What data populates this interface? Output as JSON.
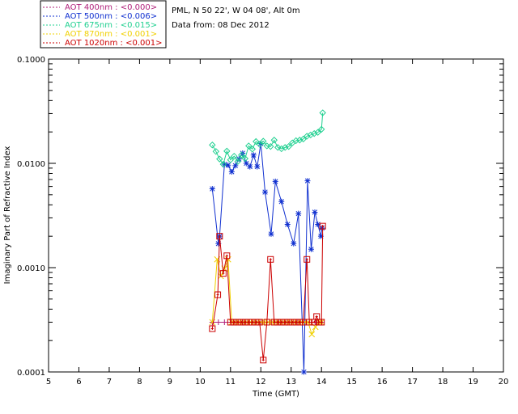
{
  "info": {
    "location": "PML, N 50 22', W 04 08', Alt 0m",
    "data_from": "Data from: 08 Dec 2012"
  },
  "legend": [
    {
      "label": "AOT  400nm : <0.000>",
      "color": "#b0207a"
    },
    {
      "label": "AOT  500nm : <0.006>",
      "color": "#1030d0"
    },
    {
      "label": "AOT  675nm : <0.015>",
      "color": "#20d090"
    },
    {
      "label": "AOT  870nm : <0.001>",
      "color": "#f0d000"
    },
    {
      "label": "AOT 1020nm : <0.001>",
      "color": "#cc0000"
    }
  ],
  "chart_data": {
    "type": "line",
    "title": "",
    "xlabel": "Time (GMT)",
    "ylabel": "Imaginary Part of Refractive Index",
    "xlim": [
      5,
      20
    ],
    "ylim": [
      0.0001,
      0.1
    ],
    "yscale": "log",
    "xticks": [
      "5",
      "6",
      "7",
      "8",
      "9",
      "10",
      "11",
      "12",
      "13",
      "14",
      "15",
      "16",
      "17",
      "18",
      "19",
      "20"
    ],
    "yticks": [
      {
        "value": 0.0001,
        "label": "0.0001"
      },
      {
        "value": 0.001,
        "label": "0.0010"
      },
      {
        "value": 0.01,
        "label": "0.0100"
      },
      {
        "value": 0.1,
        "label": "0.1000"
      }
    ],
    "series": [
      {
        "name": "AOT  400nm : <0.000>",
        "color": "#b0207a",
        "marker": "plus",
        "x": [
          10.4,
          10.6,
          10.8,
          11.0,
          11.2,
          11.4,
          11.6,
          11.8,
          12.0,
          12.2,
          12.4,
          12.6,
          12.8,
          13.0,
          13.2,
          13.4,
          13.6,
          13.8,
          14.0
        ],
        "y": [
          0.0003,
          0.0003,
          0.0003,
          0.0003,
          0.0003,
          0.0003,
          0.0003,
          0.0003,
          0.0003,
          0.0003,
          0.0003,
          0.0003,
          0.0003,
          0.0003,
          0.0003,
          0.0003,
          0.0003,
          0.0003,
          0.0003
        ]
      },
      {
        "name": "AOT  500nm : <0.006>",
        "color": "#1030d0",
        "marker": "star",
        "x": [
          10.4,
          10.6,
          10.64,
          10.8,
          10.92,
          11.04,
          11.16,
          11.28,
          11.4,
          11.52,
          11.64,
          11.76,
          11.88,
          12.0,
          12.14,
          12.34,
          12.48,
          12.68,
          12.88,
          13.08,
          13.24,
          13.42,
          13.54,
          13.66,
          13.78,
          13.88,
          13.98,
          14.02
        ],
        "y": [
          0.0057,
          0.0017,
          0.002,
          0.0098,
          0.0096,
          0.0083,
          0.0095,
          0.011,
          0.0125,
          0.01,
          0.0093,
          0.012,
          0.0093,
          0.0155,
          0.0053,
          0.0021,
          0.0067,
          0.0043,
          0.0026,
          0.0017,
          0.0033,
          0.0001,
          0.0068,
          0.0015,
          0.0034,
          0.0026,
          0.002,
          0.0024
        ]
      },
      {
        "name": "AOT  675nm : <0.015>",
        "color": "#20d090",
        "marker": "diamond",
        "x": [
          10.4,
          10.52,
          10.64,
          10.76,
          10.88,
          11.0,
          11.12,
          11.24,
          11.36,
          11.48,
          11.6,
          11.72,
          11.84,
          11.96,
          12.08,
          12.2,
          12.32,
          12.44,
          12.56,
          12.68,
          12.8,
          12.92,
          13.04,
          13.16,
          13.28,
          13.4,
          13.52,
          13.64,
          13.76,
          13.88,
          14.0,
          14.04
        ],
        "y": [
          0.015,
          0.013,
          0.011,
          0.0098,
          0.0131,
          0.0108,
          0.0117,
          0.0104,
          0.012,
          0.0111,
          0.0147,
          0.0137,
          0.0162,
          0.0152,
          0.0163,
          0.0147,
          0.0145,
          0.0167,
          0.0142,
          0.0138,
          0.0142,
          0.0145,
          0.0157,
          0.0165,
          0.0167,
          0.0171,
          0.0182,
          0.0187,
          0.0193,
          0.0198,
          0.0212,
          0.0305
        ]
      },
      {
        "name": "AOT  870nm : <0.001>",
        "color": "#f0d000",
        "marker": "x",
        "x": [
          10.4,
          10.56,
          10.68,
          10.8,
          10.92,
          11.04,
          11.16,
          11.28,
          11.4,
          11.52,
          11.64,
          11.76,
          11.88,
          12.0,
          12.12,
          12.24,
          12.36,
          12.48,
          12.6,
          12.72,
          12.84,
          12.96,
          13.08,
          13.2,
          13.32,
          13.44,
          13.56,
          13.68,
          13.8,
          13.92,
          14.0
        ],
        "y": [
          0.0003,
          0.0012,
          0.00083,
          0.00098,
          0.0012,
          0.0003,
          0.0003,
          0.0003,
          0.0003,
          0.0003,
          0.0003,
          0.0003,
          0.0003,
          0.0003,
          0.0003,
          0.0003,
          0.0003,
          0.0003,
          0.0003,
          0.0003,
          0.0003,
          0.0003,
          0.0003,
          0.0003,
          0.0003,
          0.0003,
          0.0003,
          0.00023,
          0.00027,
          0.0003,
          0.0003
        ]
      },
      {
        "name": "AOT 1020nm : <0.001>",
        "color": "#cc0000",
        "marker": "square",
        "x": [
          10.4,
          10.58,
          10.64,
          10.76,
          10.88,
          11.0,
          11.12,
          11.24,
          11.36,
          11.48,
          11.6,
          11.72,
          11.84,
          11.96,
          12.08,
          12.2,
          12.32,
          12.44,
          12.56,
          12.68,
          12.8,
          12.92,
          13.04,
          13.16,
          13.28,
          13.4,
          13.52,
          13.6,
          13.76,
          13.84,
          13.92,
          14.0,
          14.04
        ],
        "y": [
          0.00026,
          0.00055,
          0.002,
          0.00088,
          0.0013,
          0.0003,
          0.0003,
          0.0003,
          0.0003,
          0.0003,
          0.0003,
          0.0003,
          0.0003,
          0.0003,
          0.00013,
          0.0003,
          0.0012,
          0.0003,
          0.0003,
          0.0003,
          0.0003,
          0.0003,
          0.0003,
          0.0003,
          0.0003,
          0.0003,
          0.0012,
          0.0003,
          0.0003,
          0.00034,
          0.0003,
          0.0003,
          0.0025
        ]
      }
    ]
  }
}
